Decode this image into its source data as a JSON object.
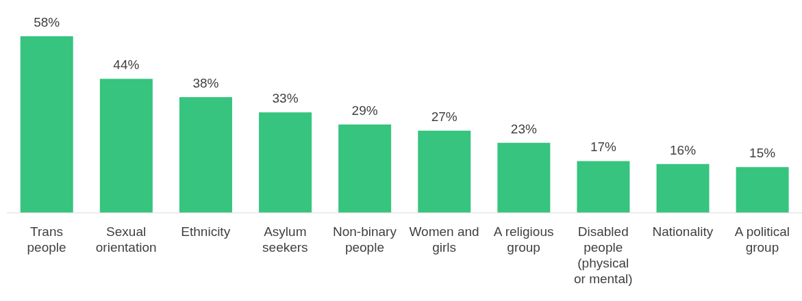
{
  "chart_data": {
    "type": "bar",
    "categories": [
      "Trans people",
      "Sexual orientation",
      "Ethnicity",
      "Asylum seekers",
      "Non-binary people",
      "Women and girls",
      "A religious group",
      "Disabled people (physical or mental)",
      "Nationality",
      "A political group"
    ],
    "values": [
      58,
      44,
      38,
      33,
      29,
      27,
      23,
      17,
      16,
      15
    ],
    "value_labels": [
      "58%",
      "44%",
      "38%",
      "33%",
      "29%",
      "27%",
      "23%",
      "17%",
      "16%",
      "15%"
    ],
    "color": "#36c47f",
    "grid": false,
    "legend": false
  }
}
